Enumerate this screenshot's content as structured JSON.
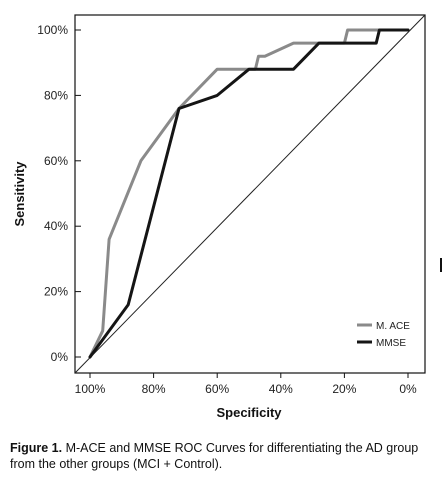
{
  "chart_data": {
    "type": "line",
    "title": "",
    "xlabel": "Specificity",
    "ylabel": "Sensitivity",
    "xlim": [
      100,
      0
    ],
    "ylim": [
      0,
      100
    ],
    "x_ticks": [
      "100%",
      "80%",
      "60%",
      "40%",
      "20%",
      "0%"
    ],
    "x_tick_values": [
      100,
      80,
      60,
      40,
      20,
      0
    ],
    "y_ticks": [
      "0%",
      "20%",
      "40%",
      "60%",
      "80%",
      "100%"
    ],
    "y_tick_values": [
      0,
      20,
      40,
      60,
      80,
      100
    ],
    "grid": false,
    "legend_position": "bottom-right",
    "reference_line": [
      [
        100,
        0
      ],
      [
        0,
        100
      ]
    ],
    "series": [
      {
        "name": "M. ACE",
        "color": "#8a8a8a",
        "points": [
          [
            100,
            0
          ],
          [
            96,
            8
          ],
          [
            94,
            36
          ],
          [
            84,
            60
          ],
          [
            72,
            76
          ],
          [
            60,
            88
          ],
          [
            48,
            88
          ],
          [
            47,
            92
          ],
          [
            45,
            92
          ],
          [
            36,
            96
          ],
          [
            30,
            96
          ],
          [
            20,
            96
          ],
          [
            19,
            100
          ],
          [
            0,
            100
          ]
        ]
      },
      {
        "name": "MMSE",
        "color": "#151515",
        "points": [
          [
            100,
            0
          ],
          [
            88,
            16
          ],
          [
            72,
            76
          ],
          [
            60,
            80
          ],
          [
            50,
            88
          ],
          [
            36,
            88
          ],
          [
            28,
            96
          ],
          [
            10,
            96
          ],
          [
            9,
            100
          ],
          [
            0,
            100
          ]
        ]
      }
    ]
  },
  "caption": {
    "label": "Figure 1.",
    "text": " M-ACE and MMSE ROC Curves for differentiating the AD group from the other groups (MCI + Control)."
  }
}
